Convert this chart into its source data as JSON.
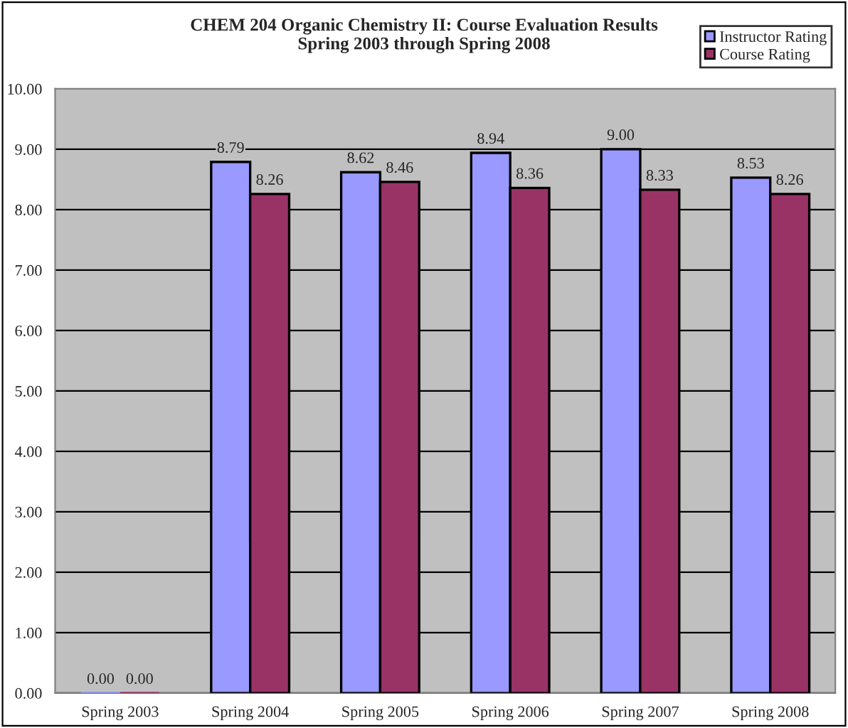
{
  "chart_data": {
    "type": "bar",
    "title": "CHEM 204 Organic Chemistry II: Course Evaluation Results\nSpring 2003 through Spring 2008",
    "categories": [
      "Spring 2003",
      "Spring 2004",
      "Spring 2005",
      "Spring 2006",
      "Spring 2007",
      "Spring 2008"
    ],
    "series": [
      {
        "name": "Instructor Rating",
        "color": "#9999ff",
        "values": [
          0,
          8.79,
          8.62,
          8.94,
          9.0,
          8.53
        ],
        "value_labels": [
          "0.00",
          "8.79",
          "8.62",
          "8.94",
          "9.00",
          "8.53"
        ]
      },
      {
        "name": "Course Rating",
        "color": "#993366",
        "values": [
          0,
          8.26,
          8.46,
          8.36,
          8.33,
          8.26
        ],
        "value_labels": [
          "0.00",
          "8.26",
          "8.46",
          "8.36",
          "8.33",
          "8.26"
        ]
      }
    ],
    "ylim": [
      0,
      10
    ],
    "yticks": [
      {
        "value": 0,
        "label": "0.00"
      },
      {
        "value": 1,
        "label": "1.00"
      },
      {
        "value": 2,
        "label": "2.00"
      },
      {
        "value": 3,
        "label": "3.00"
      },
      {
        "value": 4,
        "label": "4.00"
      },
      {
        "value": 5,
        "label": "5.00"
      },
      {
        "value": 6,
        "label": "6.00"
      },
      {
        "value": 7,
        "label": "7.00"
      },
      {
        "value": 8,
        "label": "8.00"
      },
      {
        "value": 9,
        "label": "9.00"
      },
      {
        "value": 10,
        "label": "10.00"
      }
    ],
    "grid": "y",
    "legend": "top right"
  }
}
